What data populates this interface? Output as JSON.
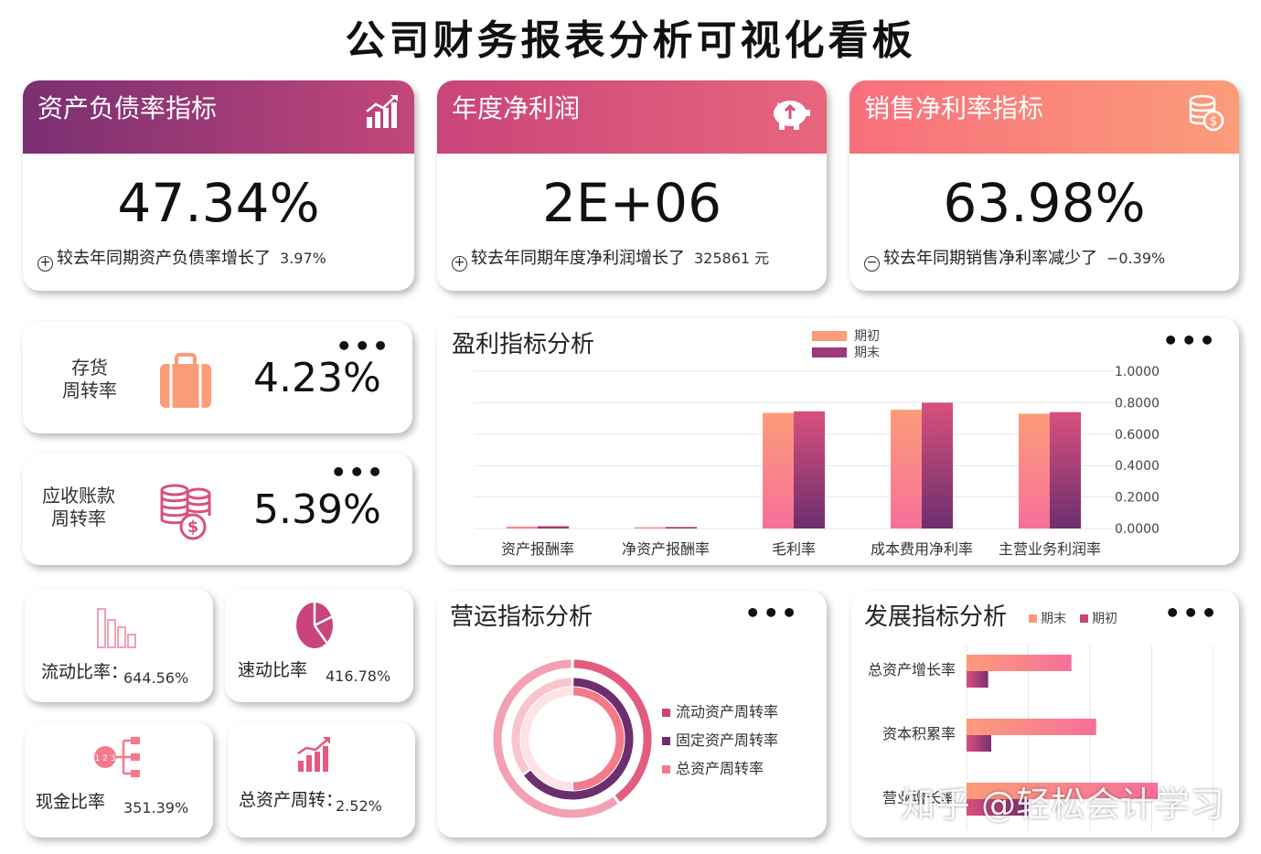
{
  "title": "公司财务报表分析可视化看板",
  "colors": {
    "purple": "#7a2f72",
    "pink": "#d9507d",
    "peach": "#fa9a79",
    "coral": "#f86f7c"
  },
  "kpis": [
    {
      "title": "资产负债率指标",
      "value": "47.34%",
      "sign": "+",
      "note": "较去年同期资产负债率增长了",
      "change": "3.97%",
      "icon": "bar-chart-icon"
    },
    {
      "title": "年度净利润",
      "value": "2E+06",
      "sign": "+",
      "note": "较去年同期年度净利润增长了",
      "change": "325861 元",
      "icon": "piggy-bank-icon"
    },
    {
      "title": "销售净利率指标",
      "value": "63.98%",
      "sign": "−",
      "note": "较去年同期销售净利率减少了",
      "change": "−0.39%",
      "icon": "coins-icon"
    }
  ],
  "turnover": [
    {
      "label_line1": "存货",
      "label_line2": "周转率",
      "value": "4.23%",
      "icon": "briefcase-icon"
    },
    {
      "label_line1": "应收账款",
      "label_line2": "周转率",
      "value": "5.39%",
      "icon": "money-stack-icon"
    }
  ],
  "ratios": [
    {
      "label": "流动比率：",
      "value": "644.56%",
      "icon": "bars-outline-icon"
    },
    {
      "label": "速动比率",
      "value": "416.78%",
      "icon": "pie-icon"
    },
    {
      "label": "现金比率",
      "value": "351.39%",
      "icon": "flow-diagram-icon"
    },
    {
      "label": "总资产周转：",
      "value": "2.52%",
      "icon": "growth-chart-icon"
    }
  ],
  "profit_panel": {
    "title": "盈利指标分析",
    "legend": [
      "期初",
      "期末"
    ]
  },
  "operation_panel": {
    "title": "营运指标分析",
    "legend": [
      "流动资产周转率",
      "固定资产周转率",
      "总资产周转率"
    ]
  },
  "growth_panel": {
    "title": "发展指标分析",
    "legend": [
      "期末",
      "期初"
    ]
  },
  "more_label": "•••",
  "watermark": "知乎 @轻松会计学习",
  "chart_data": [
    {
      "type": "bar",
      "title": "盈利指标分析",
      "categories": [
        "资产报酬率",
        "净资产报酬率",
        "毛利率",
        "成本费用净利率",
        "主营业务利润率"
      ],
      "series": [
        {
          "name": "期初",
          "values": [
            0.012,
            0.008,
            0.735,
            0.755,
            0.73
          ]
        },
        {
          "name": "期末",
          "values": [
            0.015,
            0.01,
            0.745,
            0.8,
            0.74
          ]
        }
      ],
      "ylim": [
        0,
        1
      ],
      "yticks": [
        "0.0000",
        "0.2000",
        "0.4000",
        "0.6000",
        "0.8000",
        "1.0000"
      ],
      "legend_position": "top"
    },
    {
      "type": "pie",
      "title": "营运指标分析",
      "variant": "donut-rings",
      "series": [
        {
          "name": "流动资产周转率",
          "values": [
            0.4,
            0.6
          ]
        },
        {
          "name": "固定资产周转率",
          "values": [
            0.65,
            0.35
          ]
        },
        {
          "name": "总资产周转率",
          "values": [
            0.5,
            0.5
          ]
        }
      ],
      "legend_position": "right"
    },
    {
      "type": "bar",
      "orientation": "horizontal",
      "title": "发展指标分析",
      "categories": [
        "总资产增长率",
        "资本积累率",
        "营业增长率"
      ],
      "series": [
        {
          "name": "期末",
          "values": [
            0.34,
            0.42,
            0.62
          ]
        },
        {
          "name": "期初",
          "values": [
            0.07,
            0.08,
            0.2
          ]
        }
      ],
      "legend_position": "top"
    }
  ]
}
